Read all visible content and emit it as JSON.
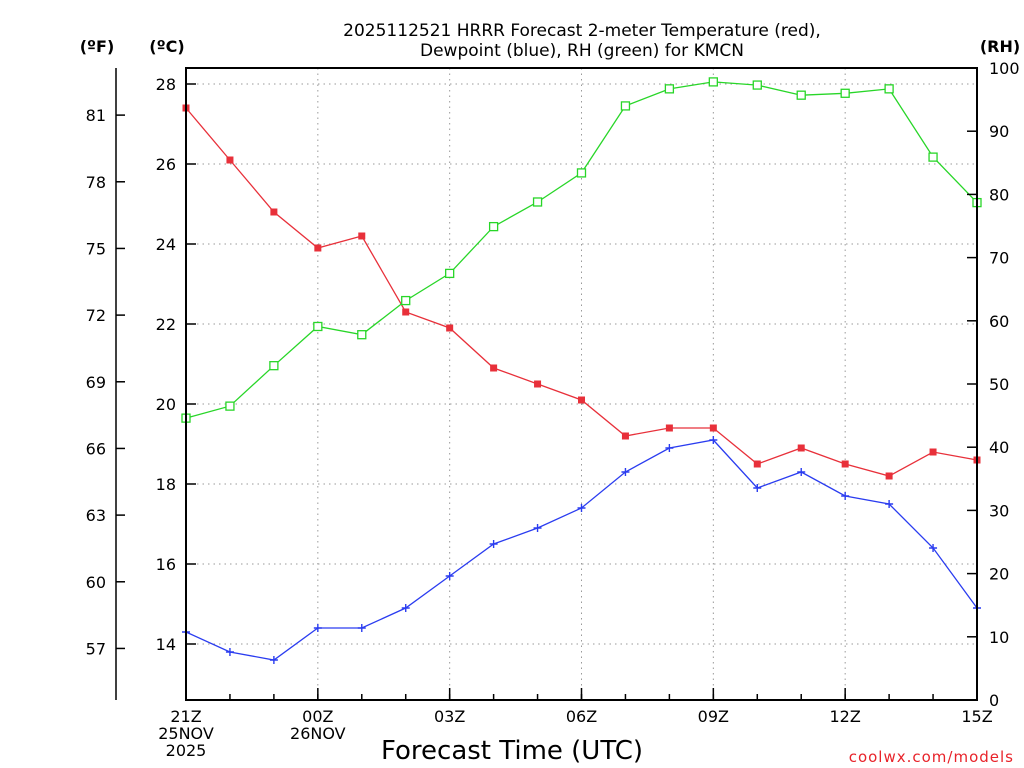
{
  "chart_data": {
    "type": "line",
    "title": [
      "2025112521 HRRR Forecast 2-meter Temperature (red),",
      "Dewpoint (blue), RH (green) for KMCN"
    ],
    "xlabel": "Forecast Time (UTC)",
    "credit": "coolwx.com/models",
    "units": {
      "fahrenheit": "(ºF)",
      "celsius": "(ºC)",
      "rh": "(RH)"
    },
    "x_hours": [
      0,
      1,
      2,
      3,
      4,
      5,
      6,
      7,
      8,
      9,
      10,
      11,
      12,
      13,
      14,
      15,
      16,
      17,
      18
    ],
    "x_ticks": [
      {
        "hour": 0,
        "lines": [
          "21Z",
          "25NOV",
          "2025"
        ]
      },
      {
        "hour": 3,
        "lines": [
          "00Z",
          "26NOV"
        ]
      },
      {
        "hour": 6,
        "lines": [
          "03Z"
        ]
      },
      {
        "hour": 9,
        "lines": [
          "06Z"
        ]
      },
      {
        "hour": 12,
        "lines": [
          "09Z"
        ]
      },
      {
        "hour": 15,
        "lines": [
          "12Z"
        ]
      },
      {
        "hour": 18,
        "lines": [
          "15Z"
        ]
      }
    ],
    "celsius_axis": {
      "range": [
        12.6,
        28.4
      ],
      "ticks": [
        14,
        16,
        18,
        20,
        22,
        24,
        26,
        28
      ]
    },
    "fahrenheit_ticks": [
      57,
      60,
      63,
      66,
      69,
      72,
      75,
      78,
      81
    ],
    "rh_axis": {
      "range": [
        0,
        100
      ],
      "ticks": [
        0,
        10,
        20,
        30,
        40,
        50,
        60,
        70,
        80,
        90,
        100
      ]
    },
    "grid": true,
    "series": [
      {
        "name": "Temperature",
        "unit": "C",
        "color": "#e8303a",
        "marker": "filled-square",
        "values": [
          27.4,
          26.1,
          24.8,
          23.9,
          24.2,
          22.3,
          21.9,
          20.9,
          20.5,
          20.1,
          19.2,
          19.4,
          19.4,
          18.5,
          18.9,
          18.5,
          18.2,
          18.8,
          18.6
        ]
      },
      {
        "name": "Dewpoint",
        "unit": "C",
        "color": "#2a3cf0",
        "marker": "plus",
        "values": [
          14.3,
          13.8,
          13.6,
          14.4,
          14.4,
          14.9,
          15.7,
          16.5,
          16.9,
          17.4,
          18.3,
          18.9,
          19.1,
          17.9,
          18.3,
          17.7,
          17.5,
          16.4,
          14.9
        ]
      },
      {
        "name": "RH",
        "unit": "%",
        "color": "#28d628",
        "marker": "open-square",
        "values": [
          44.6,
          46.5,
          52.9,
          59.1,
          57.8,
          63.2,
          67.5,
          74.9,
          78.8,
          83.4,
          94.0,
          96.7,
          97.8,
          97.3,
          95.7,
          96.0,
          96.7,
          85.9,
          78.7
        ]
      }
    ]
  }
}
